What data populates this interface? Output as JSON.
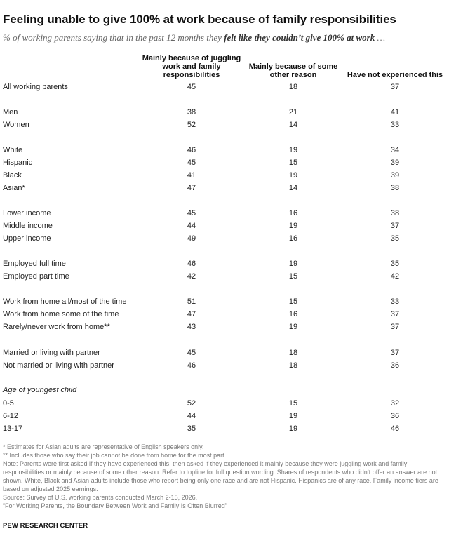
{
  "title": "Feeling unable to give 100% at work because of family responsibilities",
  "subtitle_pre": "% of working parents saying that in the past 12 months they ",
  "subtitle_bold": "felt like they couldn’t give 100% at work",
  "subtitle_post": " …",
  "columns": [
    "Mainly because of juggling work and family responsibilities",
    "Mainly because of some other reason",
    "Have not experienced this"
  ],
  "group_heading": "Age of youngest child",
  "chart_data": {
    "type": "table",
    "columns": [
      "Mainly because of juggling work and family responsibilities",
      "Mainly because of some other reason",
      "Have not experienced this"
    ],
    "rows": [
      {
        "label": "All working parents",
        "values": [
          45,
          18,
          37
        ]
      },
      {
        "label": "Men",
        "values": [
          38,
          21,
          41
        ]
      },
      {
        "label": "Women",
        "values": [
          52,
          14,
          33
        ]
      },
      {
        "label": "White",
        "values": [
          46,
          19,
          34
        ]
      },
      {
        "label": "Hispanic",
        "values": [
          45,
          15,
          39
        ]
      },
      {
        "label": "Black",
        "values": [
          41,
          19,
          39
        ]
      },
      {
        "label": "Asian*",
        "values": [
          47,
          14,
          38
        ]
      },
      {
        "label": "Lower income",
        "values": [
          45,
          16,
          38
        ]
      },
      {
        "label": "Middle income",
        "values": [
          44,
          19,
          37
        ]
      },
      {
        "label": "Upper income",
        "values": [
          49,
          16,
          35
        ]
      },
      {
        "label": "Employed full time",
        "values": [
          46,
          19,
          35
        ]
      },
      {
        "label": "Employed part time",
        "values": [
          42,
          15,
          42
        ]
      },
      {
        "label": "Work from home all/most of the time",
        "values": [
          51,
          15,
          33
        ]
      },
      {
        "label": "Work from home some of the time",
        "values": [
          47,
          16,
          37
        ]
      },
      {
        "label": "Rarely/never work from home**",
        "values": [
          43,
          19,
          37
        ]
      },
      {
        "label": "Married or living with partner",
        "values": [
          45,
          18,
          37
        ]
      },
      {
        "label": "Not married or living with partner",
        "values": [
          46,
          18,
          36
        ]
      },
      {
        "label": "0-5",
        "values": [
          52,
          15,
          32
        ]
      },
      {
        "label": "6-12",
        "values": [
          44,
          19,
          36
        ]
      },
      {
        "label": "13-17",
        "values": [
          35,
          19,
          46
        ]
      }
    ]
  },
  "notes": [
    "* Estimates for Asian adults are representative of English speakers only.",
    "** Includes those who say their job cannot be done from home for the most part.",
    "Note: Parents were first asked if they have experienced this, then asked if they experienced it mainly because they were juggling work and family responsibilities or mainly because of some other reason. Refer to topline for full question wording. Shares of respondents who didn’t offer an answer are not shown. White, Black and Asian adults include those who report being only one race and are not Hispanic. Hispanics are of any race. Family income tiers are based on adjusted 2025 earnings.",
    "Source: Survey of U.S. working parents conducted March 2-15, 2026.",
    "“For Working Parents, the Boundary Between Work and Family Is Often Blurred”"
  ],
  "footer": "PEW RESEARCH CENTER"
}
